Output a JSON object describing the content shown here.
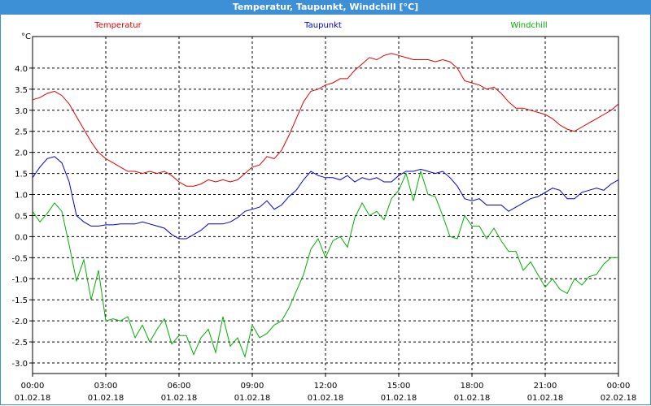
{
  "window": {
    "title": "Temperatur, Taupunkt, Windchill [°C]"
  },
  "chart_data": {
    "type": "line",
    "title": "Temperatur, Taupunkt, Windchill [°C]",
    "ylabel": "°C",
    "ylim": [
      -3.25,
      4.75
    ],
    "yticks": [
      -3.0,
      -2.5,
      -2.0,
      -1.5,
      -1.0,
      -0.5,
      0.0,
      0.5,
      1.0,
      1.5,
      2.0,
      2.5,
      3.0,
      3.5,
      4.0
    ],
    "ytick_labels": [
      "-3.0",
      "-2.5",
      "-2.0",
      "-1.5",
      "-1.0",
      "-0.5",
      "0.0",
      "0.5",
      "1.0",
      "1.5",
      "2.0",
      "2.5",
      "3.0",
      "3.5",
      "4.0"
    ],
    "xlim": [
      0,
      24
    ],
    "xticks": [
      0,
      3,
      6,
      9,
      12,
      15,
      18,
      21,
      24
    ],
    "xtick_labels": [
      [
        "00:00",
        "01.02.18"
      ],
      [
        "03:00",
        "01.02.18"
      ],
      [
        "06:00",
        "01.02.18"
      ],
      [
        "09:00",
        "01.02.18"
      ],
      [
        "12:00",
        "01.02.18"
      ],
      [
        "15:00",
        "01.02.18"
      ],
      [
        "18:00",
        "01.02.18"
      ],
      [
        "21:00",
        "01.02.18"
      ],
      [
        "00:00",
        "02.02.18"
      ]
    ],
    "grid": true,
    "legend": "top",
    "series": [
      {
        "name": "Temperatur",
        "color": "#e00000",
        "x": [
          0,
          0.3,
          0.6,
          0.9,
          1.2,
          1.5,
          1.8,
          2.1,
          2.4,
          2.7,
          3.0,
          3.3,
          3.6,
          3.9,
          4.2,
          4.5,
          4.8,
          5.1,
          5.4,
          5.7,
          6.0,
          6.3,
          6.6,
          6.9,
          7.2,
          7.5,
          7.8,
          8.1,
          8.4,
          8.7,
          9.0,
          9.3,
          9.6,
          9.9,
          10.2,
          10.5,
          10.8,
          11.1,
          11.4,
          11.7,
          12.0,
          12.3,
          12.6,
          12.9,
          13.2,
          13.5,
          13.8,
          14.1,
          14.4,
          14.7,
          15.0,
          15.3,
          15.6,
          15.9,
          16.2,
          16.5,
          16.8,
          17.1,
          17.4,
          17.7,
          18.0,
          18.3,
          18.6,
          18.9,
          19.2,
          19.5,
          19.8,
          20.1,
          20.4,
          20.7,
          21.0,
          21.3,
          21.6,
          21.9,
          22.2,
          22.5,
          22.8,
          23.1,
          23.4,
          23.7,
          24.0
        ],
        "y": [
          3.25,
          3.3,
          3.4,
          3.45,
          3.35,
          3.15,
          2.85,
          2.55,
          2.25,
          2.0,
          1.85,
          1.75,
          1.65,
          1.55,
          1.55,
          1.5,
          1.55,
          1.5,
          1.55,
          1.45,
          1.3,
          1.2,
          1.2,
          1.25,
          1.35,
          1.3,
          1.35,
          1.3,
          1.35,
          1.5,
          1.65,
          1.7,
          1.9,
          1.85,
          2.05,
          2.4,
          2.8,
          3.2,
          3.45,
          3.5,
          3.6,
          3.65,
          3.75,
          3.75,
          3.95,
          4.1,
          4.25,
          4.2,
          4.3,
          4.35,
          4.3,
          4.25,
          4.2,
          4.2,
          4.2,
          4.15,
          4.2,
          4.15,
          4.0,
          3.7,
          3.65,
          3.6,
          3.5,
          3.55,
          3.4,
          3.2,
          3.05,
          3.05,
          3.0,
          2.95,
          2.9,
          2.8,
          2.65,
          2.55,
          2.5,
          2.6,
          2.7,
          2.8,
          2.9,
          3.0,
          3.15
        ]
      },
      {
        "name": "Taupunkt",
        "color": "#0000cc",
        "x": [
          0,
          0.3,
          0.6,
          0.9,
          1.2,
          1.5,
          1.8,
          2.1,
          2.4,
          2.7,
          3.0,
          3.3,
          3.6,
          3.9,
          4.2,
          4.5,
          4.8,
          5.1,
          5.4,
          5.7,
          6.0,
          6.3,
          6.6,
          6.9,
          7.2,
          7.5,
          7.8,
          8.1,
          8.4,
          8.7,
          9.0,
          9.3,
          9.6,
          9.9,
          10.2,
          10.5,
          10.8,
          11.1,
          11.4,
          11.7,
          12.0,
          12.3,
          12.6,
          12.9,
          13.2,
          13.5,
          13.8,
          14.1,
          14.4,
          14.7,
          15.0,
          15.3,
          15.6,
          15.9,
          16.2,
          16.5,
          16.8,
          17.1,
          17.4,
          17.7,
          18.0,
          18.3,
          18.6,
          18.9,
          19.2,
          19.5,
          19.8,
          20.1,
          20.4,
          20.7,
          21.0,
          21.3,
          21.6,
          21.9,
          22.2,
          22.5,
          22.8,
          23.1,
          23.4,
          23.7,
          24.0
        ],
        "y": [
          1.4,
          1.65,
          1.85,
          1.9,
          1.75,
          1.3,
          0.5,
          0.35,
          0.25,
          0.25,
          0.28,
          0.28,
          0.3,
          0.3,
          0.3,
          0.35,
          0.3,
          0.25,
          0.2,
          0.05,
          -0.05,
          -0.05,
          0.05,
          0.15,
          0.3,
          0.3,
          0.3,
          0.35,
          0.45,
          0.6,
          0.65,
          0.7,
          0.85,
          0.65,
          0.75,
          0.95,
          1.1,
          1.35,
          1.55,
          1.45,
          1.4,
          1.4,
          1.35,
          1.45,
          1.3,
          1.4,
          1.35,
          1.4,
          1.3,
          1.3,
          1.45,
          1.55,
          1.55,
          1.6,
          1.55,
          1.5,
          1.55,
          1.4,
          1.2,
          0.9,
          0.85,
          0.9,
          0.75,
          0.75,
          0.75,
          0.6,
          0.7,
          0.8,
          0.9,
          0.95,
          1.05,
          1.15,
          1.1,
          0.9,
          0.9,
          1.05,
          1.1,
          1.15,
          1.1,
          1.25,
          1.35
        ]
      },
      {
        "name": "Windchill",
        "color": "#00b000",
        "x": [
          0,
          0.3,
          0.6,
          0.9,
          1.2,
          1.5,
          1.8,
          2.1,
          2.4,
          2.7,
          3.0,
          3.3,
          3.6,
          3.9,
          4.2,
          4.5,
          4.8,
          5.1,
          5.4,
          5.7,
          6.0,
          6.3,
          6.6,
          6.9,
          7.2,
          7.5,
          7.8,
          8.1,
          8.4,
          8.7,
          9.0,
          9.3,
          9.6,
          9.9,
          10.2,
          10.5,
          10.8,
          11.1,
          11.4,
          11.7,
          12.0,
          12.3,
          12.6,
          12.9,
          13.2,
          13.5,
          13.8,
          14.1,
          14.4,
          14.7,
          15.0,
          15.3,
          15.6,
          15.9,
          16.2,
          16.5,
          16.8,
          17.1,
          17.4,
          17.7,
          18.0,
          18.3,
          18.6,
          18.9,
          19.2,
          19.5,
          19.8,
          20.1,
          20.4,
          20.7,
          21.0,
          21.3,
          21.6,
          21.9,
          22.2,
          22.5,
          22.8,
          23.1,
          23.4,
          23.7,
          24.0
        ],
        "y": [
          0.6,
          0.35,
          0.55,
          0.8,
          0.6,
          -0.2,
          -1.05,
          -0.55,
          -1.5,
          -0.8,
          -2.0,
          -1.95,
          -2.0,
          -1.9,
          -2.4,
          -2.1,
          -2.5,
          -2.2,
          -1.95,
          -2.55,
          -2.35,
          -2.35,
          -2.8,
          -2.4,
          -2.2,
          -2.75,
          -1.9,
          -2.6,
          -2.4,
          -2.85,
          -2.1,
          -2.4,
          -2.3,
          -2.1,
          -2.0,
          -1.7,
          -1.3,
          -0.9,
          -0.3,
          -0.05,
          -0.5,
          -0.1,
          0.0,
          -0.25,
          0.45,
          0.8,
          0.5,
          0.6,
          0.4,
          0.9,
          1.1,
          1.5,
          0.85,
          1.55,
          1.0,
          0.95,
          0.5,
          0.0,
          -0.05,
          0.5,
          0.25,
          0.25,
          -0.05,
          0.2,
          -0.1,
          -0.35,
          -0.35,
          -0.8,
          -0.6,
          -0.9,
          -1.2,
          -1.0,
          -1.25,
          -1.35,
          -1.0,
          -1.15,
          -0.95,
          -0.9,
          -0.65,
          -0.5,
          -0.5
        ]
      }
    ]
  }
}
